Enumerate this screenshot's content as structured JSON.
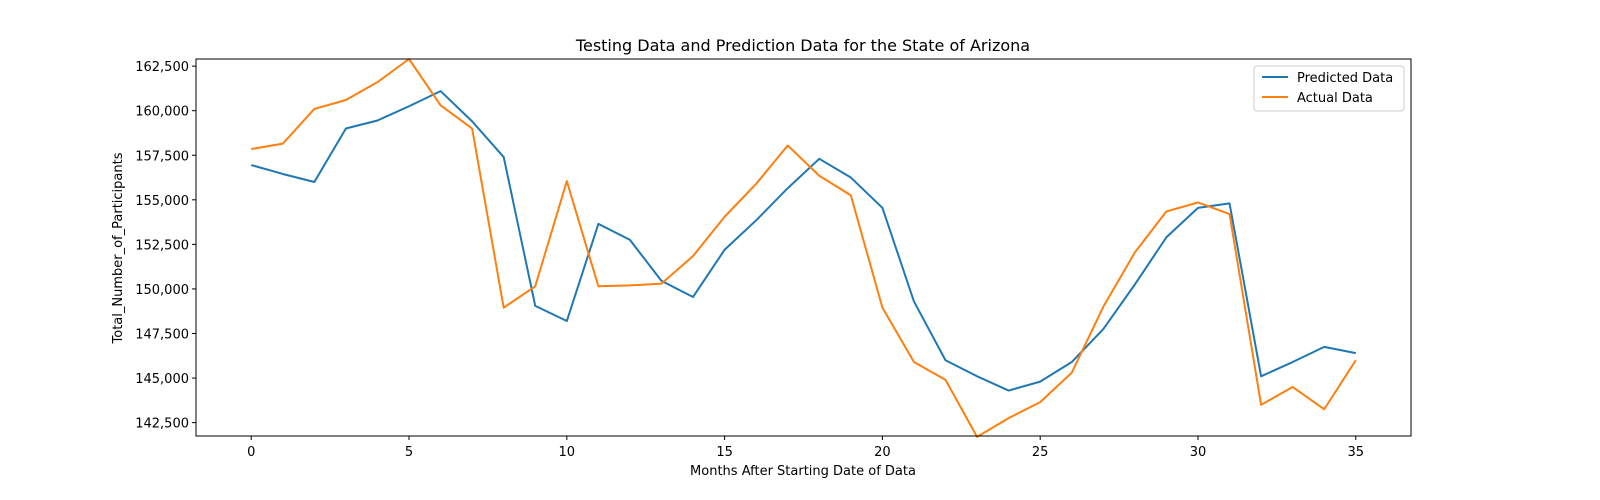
{
  "chart_data": {
    "type": "line",
    "title": "Testing Data and Prediction Data for the State of Arizona",
    "xlabel": "Months After Starting Date of Data",
    "ylabel": "Total_Number_of_Participants",
    "xlim": [
      -1.75,
      36.75
    ],
    "ylim": [
      141750,
      162900
    ],
    "xticks": [
      0,
      5,
      10,
      15,
      20,
      25,
      30,
      35
    ],
    "xtick_labels": [
      "0",
      "5",
      "10",
      "15",
      "20",
      "25",
      "30",
      "35"
    ],
    "yticks": [
      142500,
      145000,
      147500,
      150000,
      152500,
      155000,
      157500,
      160000,
      162500
    ],
    "ytick_labels": [
      "142,500",
      "145,000",
      "147,500",
      "150,000",
      "152,500",
      "155,000",
      "157,500",
      "160,000",
      "162,500"
    ],
    "grid": false,
    "legend_position": "top-right",
    "x": [
      0,
      1,
      2,
      3,
      4,
      5,
      6,
      7,
      8,
      9,
      10,
      11,
      12,
      13,
      14,
      15,
      16,
      17,
      18,
      19,
      20,
      21,
      22,
      23,
      24,
      25,
      26,
      27,
      28,
      29,
      30,
      31,
      32,
      33,
      34,
      35
    ],
    "series": [
      {
        "name": "Predicted Data",
        "color": "#1f77b4",
        "values": [
          156950,
          156450,
          156000,
          159000,
          159450,
          160250,
          161100,
          159400,
          157400,
          149050,
          148200,
          153650,
          152750,
          150450,
          149550,
          152200,
          153850,
          155650,
          157300,
          156250,
          154550,
          149300,
          146000,
          145100,
          144300,
          144800,
          145900,
          147750,
          150250,
          152900,
          154550,
          154800,
          145100,
          145900,
          146750,
          146400
        ]
      },
      {
        "name": "Actual Data",
        "color": "#ff7f0e",
        "values": [
          157850,
          158150,
          160100,
          160600,
          161600,
          162900,
          160300,
          159000,
          148950,
          150150,
          156050,
          150150,
          150200,
          150300,
          151850,
          154050,
          155900,
          158050,
          156350,
          155250,
          148950,
          145900,
          144900,
          141700,
          142750,
          143650,
          145300,
          149000,
          152050,
          154350,
          154850,
          154200,
          143500,
          144500,
          143250,
          146000
        ]
      }
    ]
  }
}
